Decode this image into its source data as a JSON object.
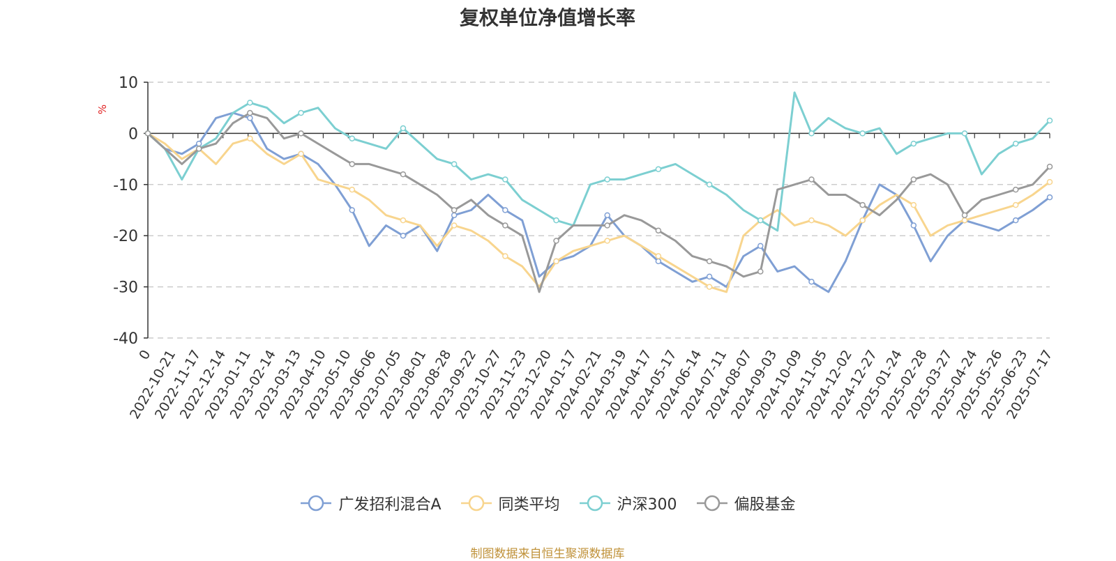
{
  "footer": "制图数据来自恒生聚源数据库",
  "chart_data": {
    "type": "line",
    "title": "复权单位净值增长率",
    "ylabel": "%",
    "ylim": [
      -40,
      10
    ],
    "yticks": [
      "10",
      "0",
      "-10",
      "-20",
      "-30",
      "-40"
    ],
    "grid": true,
    "legend_position": "bottom-center",
    "x_tick_labels": [
      "0",
      "2022-10-21",
      "2022-11-17",
      "2022-12-14",
      "2023-01-11",
      "2023-02-14",
      "2023-03-13",
      "2023-04-10",
      "2023-05-10",
      "2023-06-06",
      "2023-07-05",
      "2023-08-01",
      "2023-08-28",
      "2023-09-22",
      "2023-10-27",
      "2023-11-23",
      "2023-12-20",
      "2024-01-17",
      "2024-02-21",
      "2024-03-19",
      "2024-04-17",
      "2024-05-17",
      "2024-06-14",
      "2024-07-11",
      "2024-08-07",
      "2024-09-03",
      "2024-10-09",
      "2024-11-05",
      "2024-12-02",
      "2024-12-27",
      "2025-01-24",
      "2025-02-28",
      "2025-03-27",
      "2025-04-24",
      "2025-05-26",
      "2025-06-23",
      "2025-07-17"
    ],
    "series": [
      {
        "name": "广发招利混合A",
        "color": "#7f9fd4",
        "values": [
          0,
          -3,
          -4,
          -2,
          3,
          4,
          3,
          -3,
          -5,
          -4,
          -6,
          -10,
          -15,
          -22,
          -18,
          -20,
          -18,
          -23,
          -16,
          -15,
          -12,
          -15,
          -17,
          -28,
          -25,
          -24,
          -22,
          -16,
          -20,
          -22,
          -25,
          -27,
          -29,
          -28,
          -30,
          -24,
          -22,
          -27,
          -26,
          -29,
          -31,
          -25,
          -17,
          -10,
          -12,
          -18,
          -25,
          -20,
          -17,
          -18,
          -19,
          -17,
          -15,
          -12.5
        ]
      },
      {
        "name": "同类平均",
        "color": "#f8d58e",
        "values": [
          0,
          -2,
          -5,
          -3,
          -6,
          -2,
          -1,
          -4,
          -6,
          -4,
          -9,
          -10,
          -11,
          -13,
          -16,
          -17,
          -18,
          -22,
          -18,
          -19,
          -21,
          -24,
          -26,
          -30,
          -25,
          -23,
          -22,
          -21,
          -20,
          -22,
          -24,
          -26,
          -28,
          -30,
          -31,
          -20,
          -17,
          -15,
          -18,
          -17,
          -18,
          -20,
          -17,
          -14,
          -12,
          -14,
          -20,
          -18,
          -17,
          -16,
          -15,
          -14,
          -12,
          -9.5
        ]
      },
      {
        "name": "沪深300",
        "color": "#7ccfd1",
        "values": [
          0,
          -3,
          -9,
          -3,
          -1,
          4,
          6,
          5,
          2,
          4,
          5,
          1,
          -1,
          -2,
          -3,
          1,
          -2,
          -5,
          -6,
          -9,
          -8,
          -9,
          -13,
          -15,
          -17,
          -18,
          -10,
          -9,
          -9,
          -8,
          -7,
          -6,
          -8,
          -10,
          -12,
          -15,
          -17,
          -19,
          8,
          0,
          3,
          1,
          0,
          1,
          -4,
          -2,
          -1,
          0,
          0,
          -8,
          -4,
          -2,
          -1,
          2.5
        ]
      },
      {
        "name": "偏股基金",
        "color": "#999999",
        "values": [
          0,
          -3,
          -6,
          -3,
          -2,
          2,
          4,
          3,
          -1,
          0,
          -2,
          -4,
          -6,
          -6,
          -7,
          -8,
          -10,
          -12,
          -15,
          -13,
          -16,
          -18,
          -20,
          -31,
          -21,
          -18,
          -18,
          -18,
          -16,
          -17,
          -19,
          -21,
          -24,
          -25,
          -26,
          -28,
          -27,
          -11,
          -10,
          -9,
          -12,
          -12,
          -14,
          -16,
          -13,
          -9,
          -8,
          -10,
          -16,
          -13,
          -12,
          -11,
          -10,
          -6.5
        ]
      }
    ]
  }
}
